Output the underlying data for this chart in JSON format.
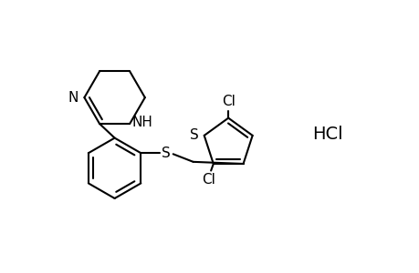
{
  "bg_color": "#ffffff",
  "line_color": "#000000",
  "line_width": 1.5,
  "figsize": [
    4.6,
    3.0
  ],
  "dpi": 100,
  "xlim": [
    0,
    8
  ],
  "ylim": [
    0,
    5.5
  ]
}
